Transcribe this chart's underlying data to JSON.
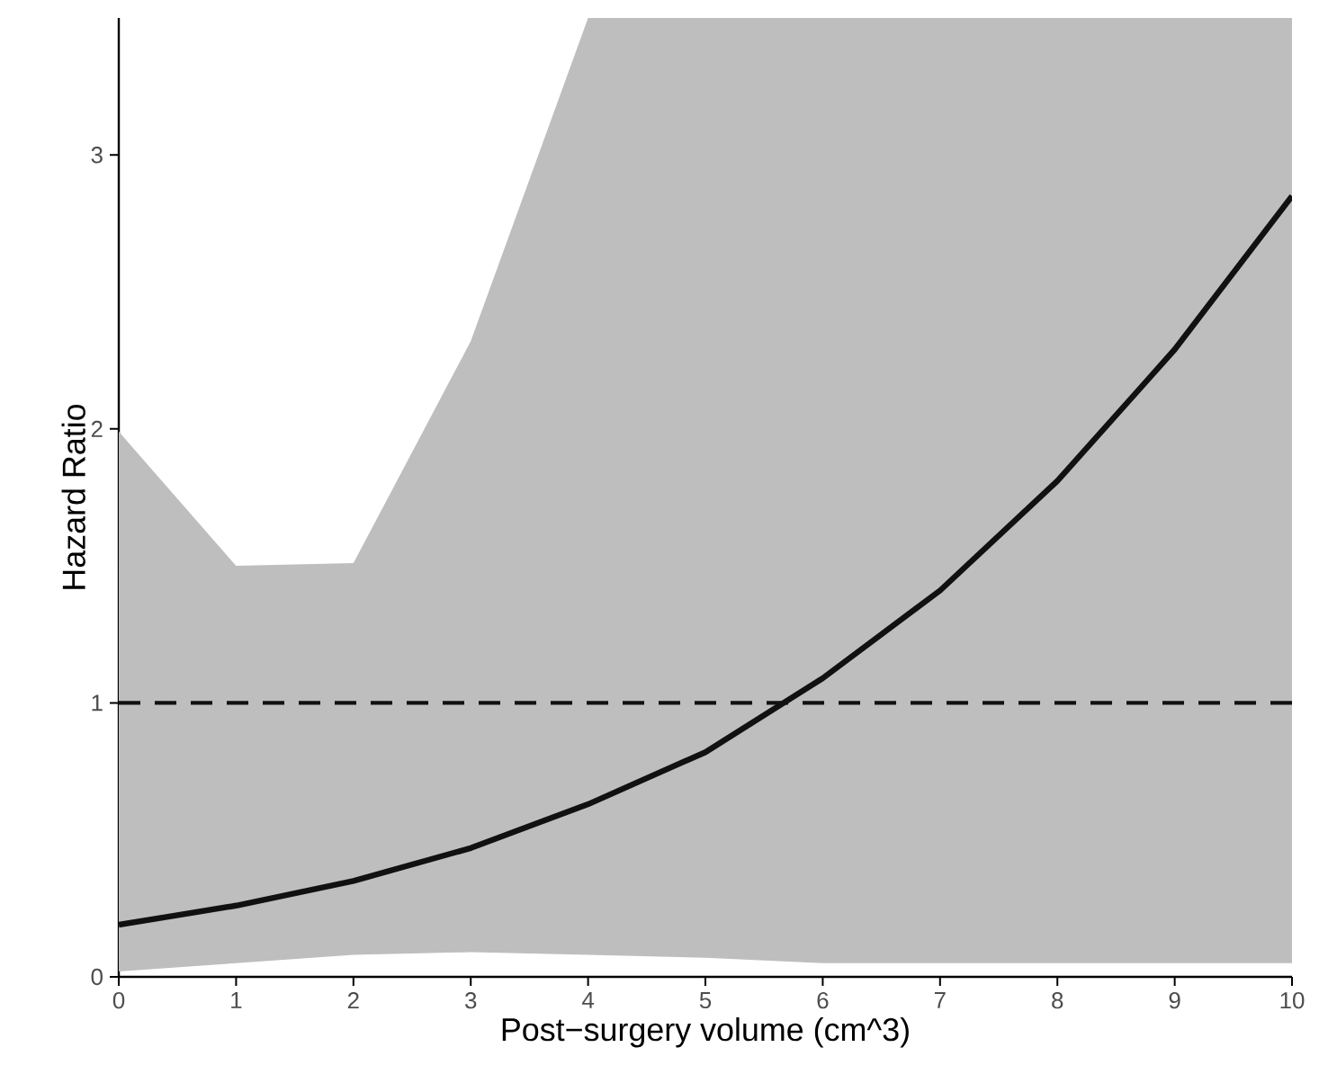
{
  "chart_data": {
    "type": "line",
    "xlabel": "Post−surgery volume (cm^3)",
    "ylabel": "Hazard Ratio",
    "x": [
      0,
      1,
      2,
      3,
      4,
      5,
      6,
      7,
      8,
      9,
      10
    ],
    "series": [
      {
        "color": "#111111",
        "values": [
          0.19,
          0.26,
          0.35,
          0.47,
          0.63,
          0.82,
          1.09,
          1.41,
          1.81,
          2.29,
          2.85
        ],
        "lower": [
          0.02,
          0.05,
          0.08,
          0.09,
          0.08,
          0.07,
          0.05,
          0.05,
          0.05,
          0.05,
          0.05
        ],
        "upper": [
          1.99,
          1.5,
          1.51,
          2.32,
          3.5,
          3.5,
          3.5,
          3.5,
          3.5,
          3.5,
          3.5
        ]
      }
    ],
    "xlim": [
      0,
      10
    ],
    "ylim": [
      0,
      3.5
    ],
    "xticks": [
      0,
      1,
      2,
      3,
      4,
      5,
      6,
      7,
      8,
      9,
      10
    ],
    "yticks": [
      0,
      1,
      2,
      3
    ],
    "ref_lines": [
      {
        "axis": "y",
        "value": 1,
        "line_style": "dashed",
        "color": "#111111"
      }
    ],
    "grid": false,
    "marker": "none",
    "line_style": "solid"
  }
}
